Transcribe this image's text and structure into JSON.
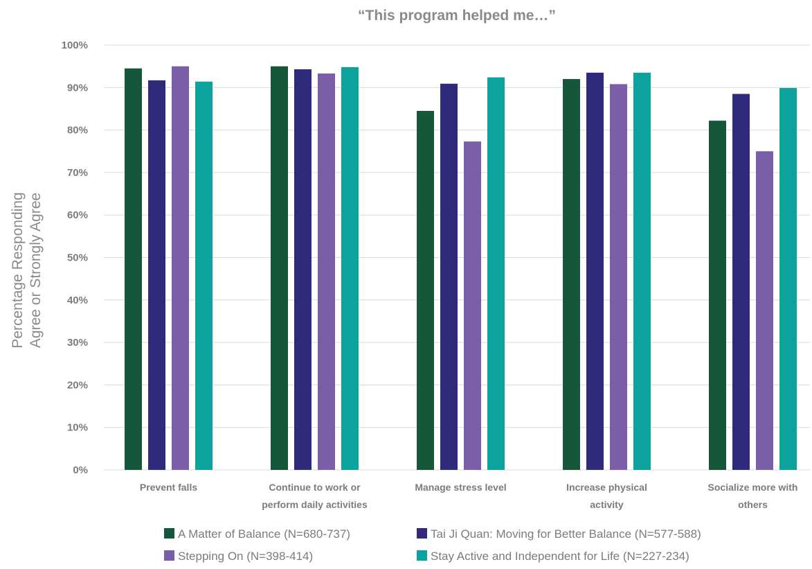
{
  "chart_data": {
    "type": "bar",
    "title": "“This program helped me…”",
    "ylabel_lines": [
      "Percentage Responding",
      "Agree or Strongly Agree"
    ],
    "categories": [
      [
        "Prevent falls"
      ],
      [
        "Continue to work or",
        "perform daily activities"
      ],
      [
        "Manage stress level"
      ],
      [
        "Increase physical",
        "activity"
      ],
      [
        "Socialize more with",
        "others"
      ]
    ],
    "ylim": [
      0,
      100
    ],
    "yticks": [
      0,
      10,
      20,
      30,
      40,
      50,
      60,
      70,
      80,
      90,
      100
    ],
    "ytick_labels": [
      "0%",
      "10%",
      "20%",
      "30%",
      "40%",
      "50%",
      "60%",
      "70%",
      "80%",
      "90%",
      "100%"
    ],
    "grid": true,
    "legend_position": "bottom",
    "series": [
      {
        "name": "A Matter of Balance (N=680-737)",
        "color": "#16563a",
        "values": [
          94.5,
          95.0,
          84.5,
          92.0,
          82.2
        ]
      },
      {
        "name": "Tai Ji Quan: Moving for Better Balance (N=577-588)",
        "color": "#302a7c",
        "values": [
          91.7,
          94.3,
          90.9,
          93.5,
          88.5
        ]
      },
      {
        "name": "Stepping On (N=398-414)",
        "color": "#7a5ea8",
        "values": [
          95.0,
          93.3,
          77.3,
          90.8,
          75.0
        ]
      },
      {
        "name": "Stay Active and Independent for Life (N=227-234)",
        "color": "#0ca39c",
        "values": [
          91.4,
          94.8,
          92.4,
          93.5,
          89.9
        ]
      }
    ]
  }
}
